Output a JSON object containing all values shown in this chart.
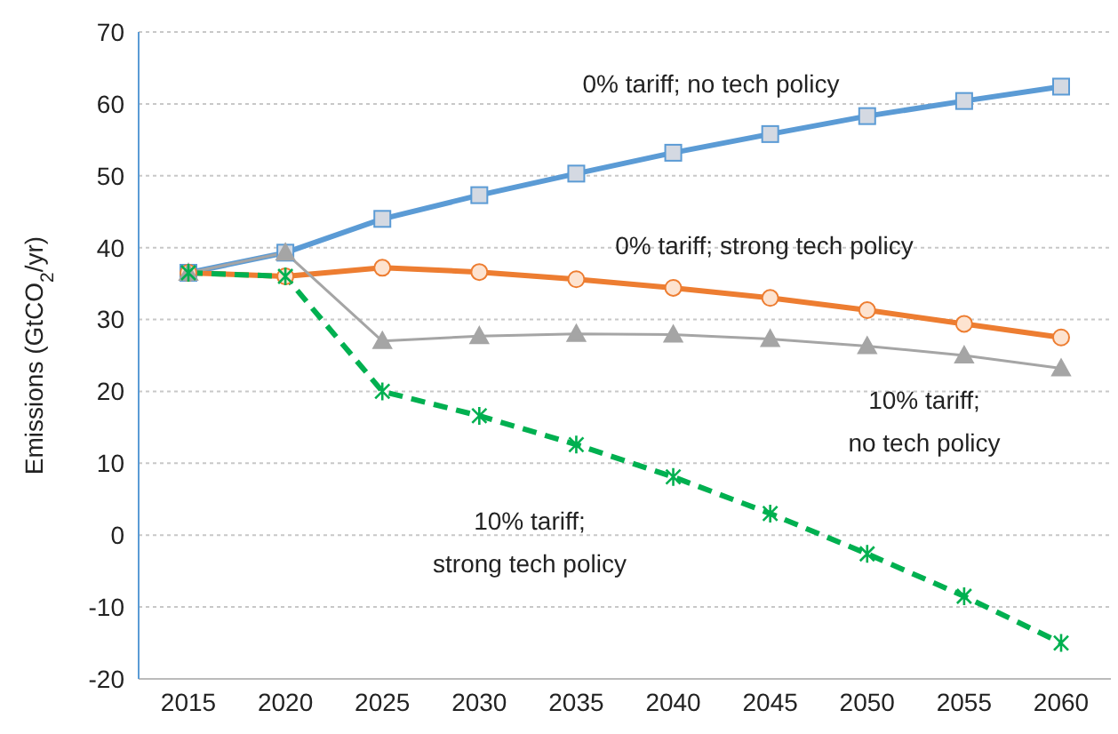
{
  "chart_data": {
    "type": "line",
    "ylabel": "Emissions (GtCO$_{2}$/yr)",
    "categories": [
      "2015",
      "2020",
      "2025",
      "2030",
      "2035",
      "2040",
      "2045",
      "2050",
      "2055",
      "2060"
    ],
    "series": [
      {
        "name": "0% tariff; no tech policy",
        "color": "#5b9bd5",
        "marker": "square",
        "line_style": "solid",
        "values": [
          36.5,
          39.3,
          44,
          47.3,
          50.3,
          53.2,
          55.8,
          58.3,
          60.4,
          62.4
        ]
      },
      {
        "name": "0% tariff; strong tech policy",
        "color": "#ed7d31",
        "marker": "circle",
        "line_style": "solid",
        "values": [
          36.5,
          36,
          37.2,
          36.6,
          35.6,
          34.4,
          33,
          31.3,
          29.4,
          27.5
        ]
      },
      {
        "name": "10% tariff; no tech policy",
        "color": "#a5a5a5",
        "marker": "triangle",
        "line_style": "solid",
        "values": [
          36.5,
          39.3,
          27,
          27.7,
          28,
          27.9,
          27.3,
          26.3,
          25,
          23.2
        ]
      },
      {
        "name": "10% tariff; strong tech policy",
        "color": "#00b050",
        "marker": "cross",
        "line_style": "dashed",
        "values": [
          36.5,
          36,
          20,
          16.6,
          12.6,
          8.1,
          3,
          -2.6,
          -8.5,
          -15
        ]
      }
    ],
    "ylim": [
      -20,
      70
    ],
    "yticks": [
      -20,
      -10,
      0,
      10,
      20,
      30,
      40,
      50,
      60,
      70
    ],
    "grid": "y"
  }
}
